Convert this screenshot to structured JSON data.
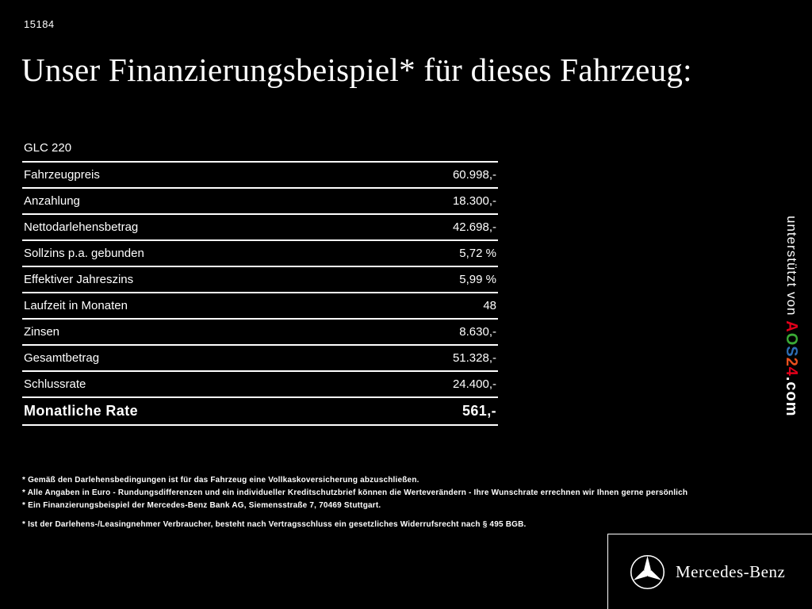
{
  "page": {
    "ref": "15184",
    "title": "Unser Finanzierungsbeispiel* für dieses Fahrzeug:"
  },
  "table": {
    "model": "GLC 220",
    "rows": [
      {
        "label": "Fahrzeugpreis",
        "value": "60.998,-"
      },
      {
        "label": "Anzahlung",
        "value": "18.300,-"
      },
      {
        "label": "Nettodarlehensbetrag",
        "value": "42.698,-"
      },
      {
        "label": "Sollzins p.a. gebunden",
        "value": "5,72 %"
      },
      {
        "label": "Effektiver Jahreszins",
        "value": "5,99 %"
      },
      {
        "label": "Laufzeit in Monaten",
        "value": "48"
      },
      {
        "label": "Zinsen",
        "value": "8.630,-"
      },
      {
        "label": "Gesamtbetrag",
        "value": "51.328,-"
      },
      {
        "label": "Schlussrate",
        "value": "24.400,-"
      }
    ],
    "highlight_row": {
      "label": "Monatliche Rate",
      "value": "561,-"
    }
  },
  "sidebar": {
    "supported_by": "unterstützt von ",
    "brand_letters": [
      {
        "char": "A",
        "color": "#e2001a"
      },
      {
        "char": "O",
        "color": "#3aaa35"
      },
      {
        "char": "S",
        "color": "#2d6db5"
      },
      {
        "char": "2",
        "color": "#e94f1d"
      },
      {
        "char": "4",
        "color": "#e2001a"
      }
    ],
    "domain_suffix": ".com"
  },
  "footnotes": [
    "* Gemäß den Darlehensbedingungen ist für das Fahrzeug eine Vollkaskoversicherung abzuschließen.",
    "* Alle Angaben in Euro - Rundungsdifferenzen und ein individueller Kreditschutzbrief können die Werteverändern - Ihre Wunschrate errechnen wir Ihnen gerne persönlich",
    "* Ein Finanzierungsbeispiel der Mercedes-Benz Bank AG, Siemensstraße 7, 70469 Stuttgart.",
    "* Ist der Darlehens-/Leasingnehmer Verbraucher, besteht nach Vertragsschluss ein gesetzliches Widerrufsrecht nach § 495 BGB."
  ],
  "footer": {
    "brand": "Mercedes-Benz"
  }
}
